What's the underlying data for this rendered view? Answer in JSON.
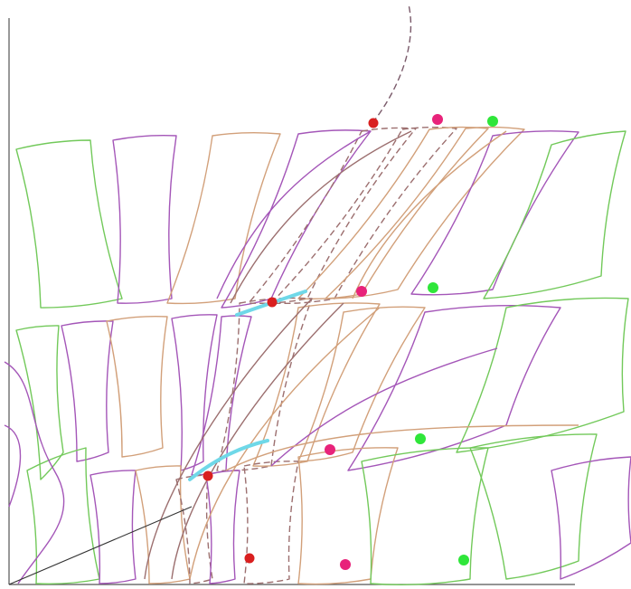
{
  "colors": {
    "background": "#ffffff",
    "axis": "#555555",
    "frame_green": "#72c95a",
    "frame_purple": "#a456b8",
    "frame_tan": "#d2a07a",
    "frame_dashed_brown": "#9c6f6f",
    "marker_red": "#d91f1f",
    "marker_magenta": "#e8237a",
    "marker_green": "#2fe63a",
    "highlight_cyan": "#6fd8e8",
    "guide_line": "#333333"
  },
  "diagram": {
    "type": "deforming-mesh-cells",
    "rows": 3,
    "marker_rows": 4,
    "markers_per_row": [
      "red",
      "magenta",
      "green"
    ],
    "labels": []
  }
}
